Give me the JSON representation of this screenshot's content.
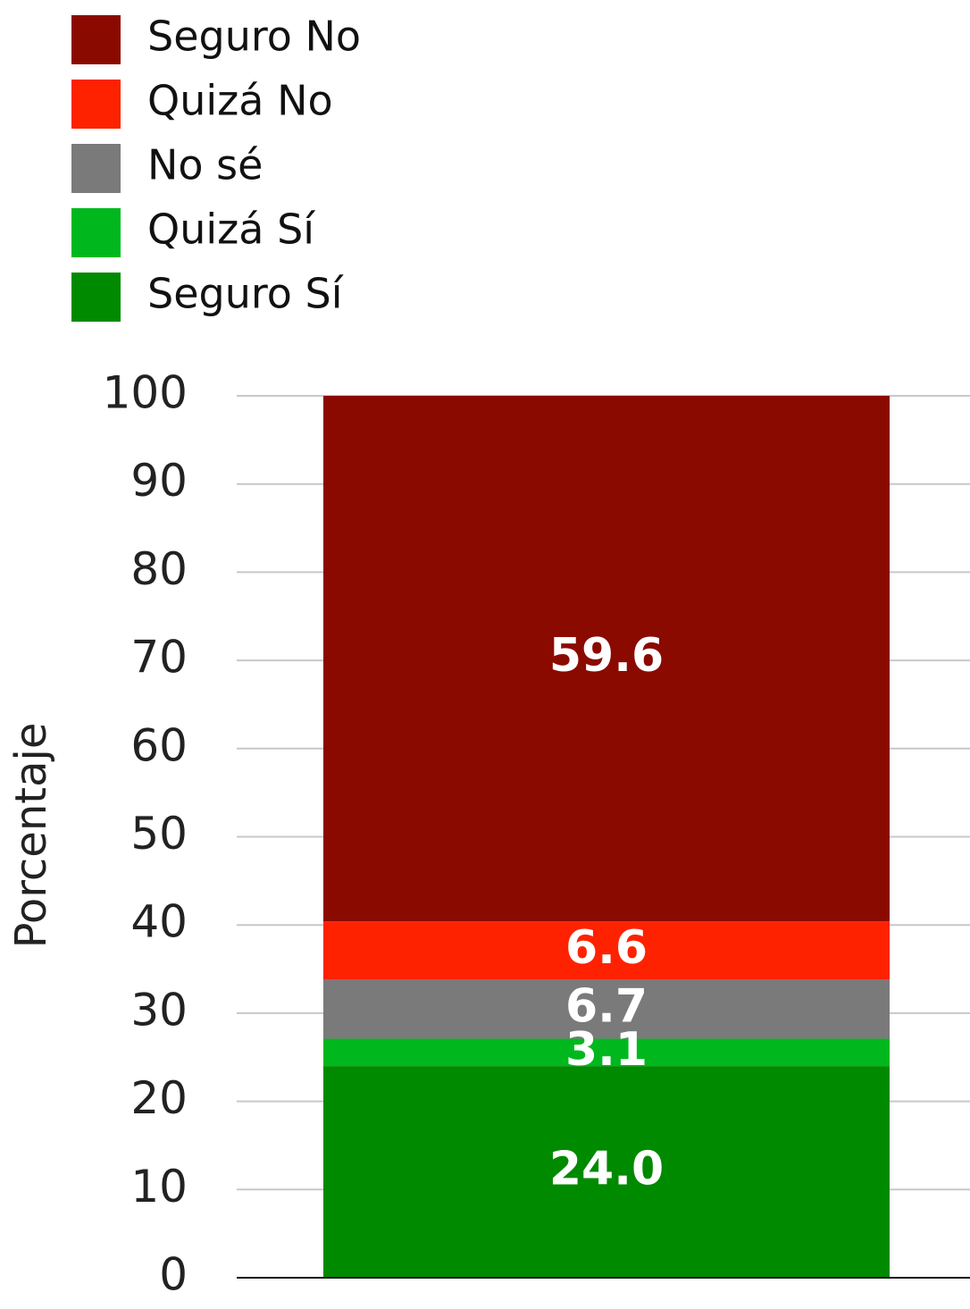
{
  "chart_data": {
    "type": "stacked_bar",
    "y_label": "Porcentaje",
    "categories": [
      null
    ],
    "series": [
      {
        "name": "Seguro No",
        "color": "#8b0a00",
        "values": [
          59.6
        ]
      },
      {
        "name": "Quizá No",
        "color": "#ff2200",
        "values": [
          6.6
        ]
      },
      {
        "name": "No sé",
        "color": "#7a7a7a",
        "values": [
          6.7
        ]
      },
      {
        "name": "Quizá Sí",
        "color": "#00b81e",
        "values": [
          3.1
        ]
      },
      {
        "name": "Seguro Sí",
        "color": "#008a00",
        "values": [
          24
        ],
        "value_labels": [
          "24.0"
        ]
      }
    ],
    "ylim": [
      0,
      100
    ],
    "yticks": [
      0,
      10,
      20,
      30,
      40,
      50,
      60,
      70,
      80,
      90,
      100
    ],
    "grid": true,
    "legend": "top-left"
  }
}
